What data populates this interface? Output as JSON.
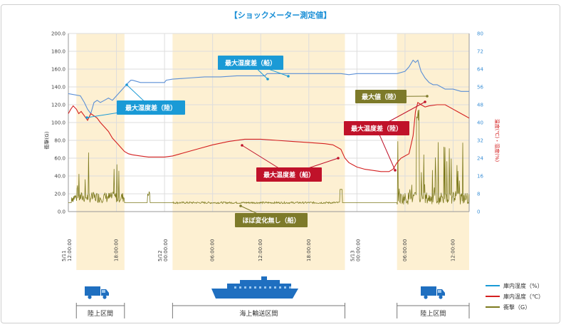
{
  "chart_data": {
    "type": "line",
    "title": "【ショックメーター測定値】",
    "left_axis": {
      "label": "衝撃(G)",
      "ylim": [
        0,
        200
      ],
      "ticks": [
        "0.0",
        "20.0",
        "40.0",
        "60.0",
        "80.0",
        "100.0",
        "120.0",
        "140.0",
        "160.0",
        "180.0",
        "200.0"
      ]
    },
    "right_axis": {
      "label": "温度(℃)・湿度(%)",
      "ylim": [
        0,
        80
      ],
      "ticks": [
        "0",
        "8",
        "16",
        "24",
        "32",
        "40",
        "48",
        "56",
        "64",
        "72",
        "80"
      ]
    },
    "x_ticks": [
      {
        "hours": 0,
        "label": "5/11 12:00:00"
      },
      {
        "hours": 6,
        "label": "18:00:00"
      },
      {
        "hours": 12,
        "label": "5/12 00:00:00"
      },
      {
        "hours": 18,
        "label": "06:00:00"
      },
      {
        "hours": 24,
        "label": "12:00:00"
      },
      {
        "hours": 30,
        "label": "18:00:00"
      },
      {
        "hours": 36,
        "label": "5/13 00:00:00"
      },
      {
        "hours": 42,
        "label": "06:00:00"
      },
      {
        "hours": 48,
        "label": "12:00:00"
      }
    ],
    "xlim": [
      0,
      50
    ],
    "bands": [
      {
        "start": 1,
        "end": 7,
        "label": "陸上区間",
        "icon": "truck-icon"
      },
      {
        "start": 13,
        "end": 34.5,
        "label": "海上輸送区間",
        "icon": "ship-icon"
      },
      {
        "start": 41,
        "end": 50,
        "label": "陸上区間",
        "icon": "truck-icon"
      }
    ],
    "series": [
      {
        "name": "庫内湿度（%）",
        "axis": "right",
        "color": "#5b8fd6",
        "points": [
          [
            0,
            53
          ],
          [
            1.5,
            52
          ],
          [
            2,
            49
          ],
          [
            2.4,
            46
          ],
          [
            2.8,
            44
          ],
          [
            3.2,
            49
          ],
          [
            3.6,
            50
          ],
          [
            4,
            49
          ],
          [
            4.5,
            50
          ],
          [
            5,
            51
          ],
          [
            5.5,
            50
          ],
          [
            6,
            52
          ],
          [
            6.5,
            54
          ],
          [
            7,
            56
          ],
          [
            7.5,
            58
          ],
          [
            7.8,
            59
          ],
          [
            8,
            59
          ],
          [
            9,
            58
          ],
          [
            10,
            58
          ],
          [
            11,
            58
          ],
          [
            12,
            58
          ],
          [
            12.2,
            59
          ],
          [
            13,
            59.5
          ],
          [
            15,
            60
          ],
          [
            17,
            60.5
          ],
          [
            19,
            60.5
          ],
          [
            21,
            61
          ],
          [
            23,
            61
          ],
          [
            24.5,
            61
          ],
          [
            24.8,
            62
          ],
          [
            25.5,
            62
          ],
          [
            27,
            62
          ],
          [
            29,
            62
          ],
          [
            31,
            62
          ],
          [
            32,
            62
          ],
          [
            33.5,
            62
          ],
          [
            34,
            62
          ],
          [
            35,
            61.5
          ],
          [
            36,
            62
          ],
          [
            38,
            62
          ],
          [
            40,
            62
          ],
          [
            41,
            62
          ],
          [
            42,
            63
          ],
          [
            42.5,
            65
          ],
          [
            43,
            68
          ],
          [
            43.3,
            67
          ],
          [
            43.6,
            68
          ],
          [
            44,
            63
          ],
          [
            44.5,
            60
          ],
          [
            45,
            58
          ],
          [
            45.5,
            57
          ],
          [
            46,
            57
          ],
          [
            46.5,
            56
          ],
          [
            47,
            55
          ],
          [
            48,
            55
          ],
          [
            49,
            54
          ],
          [
            50,
            54
          ]
        ]
      },
      {
        "name": "庫内温度（℃）",
        "axis": "right",
        "color": "#d42020",
        "points": [
          [
            0,
            44
          ],
          [
            0.3,
            46
          ],
          [
            0.6,
            47.5
          ],
          [
            1,
            46
          ],
          [
            1.3,
            44
          ],
          [
            1.6,
            45
          ],
          [
            2,
            43
          ],
          [
            2.4,
            41
          ],
          [
            2.8,
            44
          ],
          [
            3.2,
            43
          ],
          [
            3.6,
            42
          ],
          [
            4,
            40
          ],
          [
            4.5,
            38
          ],
          [
            5,
            36
          ],
          [
            5.5,
            33
          ],
          [
            6,
            31
          ],
          [
            6.5,
            29
          ],
          [
            7,
            27
          ],
          [
            7.5,
            26
          ],
          [
            8,
            25.5
          ],
          [
            9,
            25
          ],
          [
            10,
            24.5
          ],
          [
            11,
            24.5
          ],
          [
            12,
            24.5
          ],
          [
            13,
            25
          ],
          [
            14,
            26
          ],
          [
            16,
            28
          ],
          [
            18,
            30
          ],
          [
            20,
            31.5
          ],
          [
            22,
            32.5
          ],
          [
            24,
            32.5
          ],
          [
            26,
            32
          ],
          [
            28,
            31.5
          ],
          [
            30,
            31
          ],
          [
            32,
            30.5
          ],
          [
            33,
            30
          ],
          [
            34,
            28
          ],
          [
            34.5,
            24
          ],
          [
            35,
            22
          ],
          [
            35.5,
            21
          ],
          [
            36,
            20
          ],
          [
            37,
            19
          ],
          [
            38,
            18.5
          ],
          [
            39,
            18
          ],
          [
            40,
            18
          ],
          [
            40.5,
            19
          ],
          [
            41,
            22
          ],
          [
            41.5,
            24
          ],
          [
            42,
            25
          ],
          [
            42.5,
            26
          ],
          [
            43,
            34
          ],
          [
            43.3,
            45
          ],
          [
            43.6,
            49
          ],
          [
            44,
            48
          ],
          [
            44.5,
            47
          ],
          [
            45,
            47.5
          ],
          [
            46,
            48
          ],
          [
            47,
            48
          ],
          [
            48,
            46
          ],
          [
            48.5,
            45
          ],
          [
            49,
            44
          ],
          [
            49.5,
            43
          ],
          [
            50,
            42
          ]
        ]
      },
      {
        "name": "衝撃（G）",
        "axis": "left",
        "color": "#7d7a1e",
        "baseline": 10
      }
    ],
    "annotations": [
      {
        "text": "最大湿度差（陸）",
        "color": "#1a9ad6"
      },
      {
        "text": "最大湿度差（船）",
        "color": "#1a9ad6"
      },
      {
        "text": "最大値（陸）",
        "color": "#7d7a2a"
      },
      {
        "text": "最大温度差（陸）",
        "color": "#c0122a"
      },
      {
        "text": "最大温度差（船）",
        "color": "#c0122a"
      },
      {
        "text": "ほぼ変化無し（船）",
        "color": "#7d7a2a"
      }
    ],
    "legend": [
      {
        "text": "庫内湿度（%）",
        "color": "#1a9ad6"
      },
      {
        "text": "庫内温度（℃）",
        "color": "#d42020"
      },
      {
        "text": "衝撃（G）",
        "color": "#7d7a1e"
      }
    ],
    "legend_placement": "bottom-right",
    "grid": true
  }
}
